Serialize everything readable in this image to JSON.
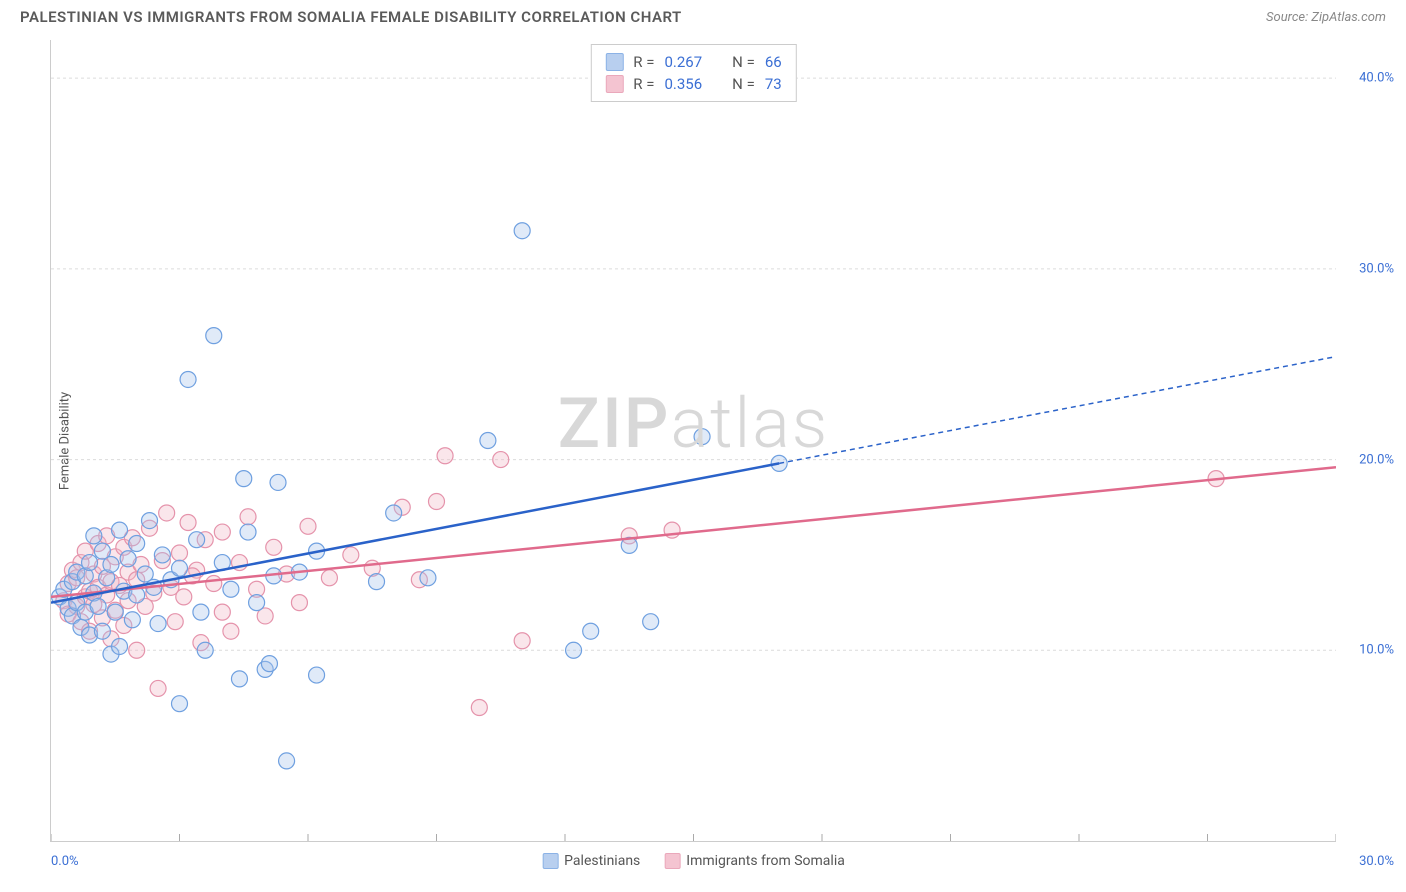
{
  "header": {
    "title": "PALESTINIAN VS IMMIGRANTS FROM SOMALIA FEMALE DISABILITY CORRELATION CHART",
    "source": "Source: ZipAtlas.com"
  },
  "chart": {
    "type": "scatter",
    "ylabel": "Female Disability",
    "background_color": "#ffffff",
    "grid_color": "#dcdcdc",
    "axis_color": "#cccccc",
    "label_color": "#555555",
    "tick_label_color": "#3b6fd4",
    "xlim": [
      0,
      30
    ],
    "ylim": [
      0,
      42
    ],
    "x_ticks": [
      0,
      3,
      6,
      9,
      12,
      15,
      18,
      21,
      24,
      27,
      30
    ],
    "x_tick_labels_shown": {
      "0": "0.0%",
      "30": "30.0%"
    },
    "y_gridlines": [
      10,
      20,
      30,
      40
    ],
    "y_tick_labels": {
      "10": "10.0%",
      "20": "20.0%",
      "30": "30.0%",
      "40": "40.0%"
    },
    "marker_radius": 8,
    "marker_fill_opacity": 0.35,
    "marker_stroke_width": 1.2,
    "trend_line_width": 2.5,
    "watermark": {
      "text_bold": "ZIP",
      "text_light": "atlas",
      "color": "#d8d8d8",
      "fontsize": 70
    }
  },
  "series": {
    "palestinians": {
      "label": "Palestinians",
      "color_stroke": "#6fa0e0",
      "color_fill": "#a7c4ec",
      "trend_color": "#2a62c9",
      "R": "0.267",
      "N": "66",
      "trend": {
        "x1": 0,
        "y1": 12.5,
        "x2_solid": 17,
        "y2_solid": 19.8,
        "x2_dash": 30,
        "y2_dash": 25.4
      },
      "points": [
        [
          0.2,
          12.8
        ],
        [
          0.3,
          13.2
        ],
        [
          0.4,
          12.2
        ],
        [
          0.5,
          13.6
        ],
        [
          0.5,
          11.8
        ],
        [
          0.6,
          14.1
        ],
        [
          0.6,
          12.5
        ],
        [
          0.7,
          11.2
        ],
        [
          0.8,
          13.9
        ],
        [
          0.8,
          12.0
        ],
        [
          0.9,
          14.6
        ],
        [
          0.9,
          10.8
        ],
        [
          1.0,
          13.0
        ],
        [
          1.0,
          16.0
        ],
        [
          1.1,
          12.3
        ],
        [
          1.2,
          15.2
        ],
        [
          1.2,
          11.0
        ],
        [
          1.3,
          13.8
        ],
        [
          1.4,
          9.8
        ],
        [
          1.4,
          14.5
        ],
        [
          1.5,
          12.0
        ],
        [
          1.6,
          16.3
        ],
        [
          1.6,
          10.2
        ],
        [
          1.7,
          13.1
        ],
        [
          1.8,
          14.8
        ],
        [
          1.9,
          11.6
        ],
        [
          2.0,
          15.6
        ],
        [
          2.0,
          12.9
        ],
        [
          2.2,
          14.0
        ],
        [
          2.3,
          16.8
        ],
        [
          2.4,
          13.3
        ],
        [
          2.5,
          11.4
        ],
        [
          2.6,
          15.0
        ],
        [
          2.8,
          13.7
        ],
        [
          3.0,
          14.3
        ],
        [
          3.0,
          7.2
        ],
        [
          3.2,
          24.2
        ],
        [
          3.4,
          15.8
        ],
        [
          3.5,
          12.0
        ],
        [
          3.6,
          10.0
        ],
        [
          3.8,
          26.5
        ],
        [
          4.0,
          14.6
        ],
        [
          4.2,
          13.2
        ],
        [
          4.4,
          8.5
        ],
        [
          4.5,
          19.0
        ],
        [
          4.6,
          16.2
        ],
        [
          4.8,
          12.5
        ],
        [
          5.0,
          9.0
        ],
        [
          5.1,
          9.3
        ],
        [
          5.2,
          13.9
        ],
        [
          5.3,
          18.8
        ],
        [
          5.5,
          4.2
        ],
        [
          5.8,
          14.1
        ],
        [
          6.2,
          15.2
        ],
        [
          6.2,
          8.7
        ],
        [
          7.6,
          13.6
        ],
        [
          8.0,
          17.2
        ],
        [
          8.8,
          13.8
        ],
        [
          10.2,
          21.0
        ],
        [
          11.0,
          32.0
        ],
        [
          12.2,
          10.0
        ],
        [
          12.6,
          11.0
        ],
        [
          14.0,
          11.5
        ],
        [
          15.2,
          21.2
        ],
        [
          17.0,
          19.8
        ],
        [
          13.5,
          15.5
        ]
      ]
    },
    "somalia": {
      "label": "Immigrants from Somalia",
      "color_stroke": "#e593ab",
      "color_fill": "#f2b6c6",
      "trend_color": "#e06a8c",
      "R": "0.356",
      "N": "73",
      "trend": {
        "x1": 0,
        "y1": 12.8,
        "x2_solid": 30,
        "y2_solid": 19.6
      },
      "points": [
        [
          0.3,
          12.6
        ],
        [
          0.4,
          13.5
        ],
        [
          0.4,
          11.9
        ],
        [
          0.5,
          14.2
        ],
        [
          0.6,
          12.3
        ],
        [
          0.6,
          13.8
        ],
        [
          0.7,
          11.5
        ],
        [
          0.7,
          14.6
        ],
        [
          0.8,
          12.8
        ],
        [
          0.8,
          15.2
        ],
        [
          0.9,
          13.1
        ],
        [
          0.9,
          11.0
        ],
        [
          1.0,
          14.0
        ],
        [
          1.0,
          12.4
        ],
        [
          1.1,
          15.6
        ],
        [
          1.1,
          13.3
        ],
        [
          1.2,
          11.7
        ],
        [
          1.2,
          14.4
        ],
        [
          1.3,
          12.9
        ],
        [
          1.3,
          16.0
        ],
        [
          1.4,
          13.6
        ],
        [
          1.4,
          10.6
        ],
        [
          1.5,
          14.9
        ],
        [
          1.5,
          12.1
        ],
        [
          1.6,
          13.4
        ],
        [
          1.7,
          15.4
        ],
        [
          1.7,
          11.3
        ],
        [
          1.8,
          14.1
        ],
        [
          1.8,
          12.6
        ],
        [
          1.9,
          15.9
        ],
        [
          2.0,
          13.7
        ],
        [
          2.0,
          10.0
        ],
        [
          2.1,
          14.5
        ],
        [
          2.2,
          12.3
        ],
        [
          2.3,
          16.4
        ],
        [
          2.4,
          13.0
        ],
        [
          2.5,
          8.0
        ],
        [
          2.6,
          14.7
        ],
        [
          2.7,
          17.2
        ],
        [
          2.8,
          13.3
        ],
        [
          2.9,
          11.5
        ],
        [
          3.0,
          15.1
        ],
        [
          3.1,
          12.8
        ],
        [
          3.2,
          16.7
        ],
        [
          3.4,
          14.2
        ],
        [
          3.5,
          10.4
        ],
        [
          3.6,
          15.8
        ],
        [
          3.8,
          13.5
        ],
        [
          4.0,
          12.0
        ],
        [
          4.0,
          16.2
        ],
        [
          4.2,
          11.0
        ],
        [
          4.4,
          14.6
        ],
        [
          4.6,
          17.0
        ],
        [
          4.8,
          13.2
        ],
        [
          5.0,
          11.8
        ],
        [
          5.2,
          15.4
        ],
        [
          5.5,
          14.0
        ],
        [
          5.8,
          12.5
        ],
        [
          6.0,
          16.5
        ],
        [
          6.5,
          13.8
        ],
        [
          7.0,
          15.0
        ],
        [
          7.5,
          14.3
        ],
        [
          8.2,
          17.5
        ],
        [
          8.6,
          13.7
        ],
        [
          9.0,
          17.8
        ],
        [
          9.2,
          20.2
        ],
        [
          10.0,
          7.0
        ],
        [
          10.5,
          20.0
        ],
        [
          11.0,
          10.5
        ],
        [
          13.5,
          16.0
        ],
        [
          14.5,
          16.3
        ],
        [
          27.2,
          19.0
        ],
        [
          3.3,
          13.9
        ]
      ]
    }
  },
  "stat_legend": {
    "rows": [
      {
        "series": "palestinians",
        "r_label": "R =",
        "n_label": "N ="
      },
      {
        "series": "somalia",
        "r_label": "R =",
        "n_label": "N ="
      }
    ]
  },
  "bottom_legend": {
    "items": [
      {
        "series": "palestinians"
      },
      {
        "series": "somalia"
      }
    ]
  }
}
